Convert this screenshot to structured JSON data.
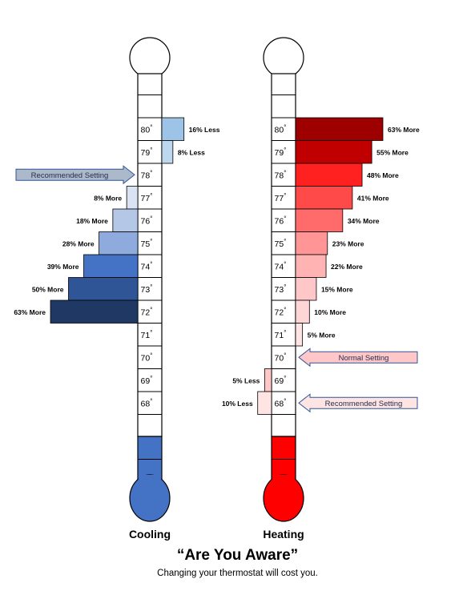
{
  "degree_symbol": "°",
  "cooling": {
    "label": "Cooling",
    "temps": [
      80,
      79,
      78,
      77,
      76,
      75,
      74,
      73,
      72,
      71,
      70,
      69,
      68
    ],
    "bars": [
      {
        "temp": 80,
        "percent": 16,
        "direction": "Less",
        "label": "16% Less",
        "color": "#9dc3e6"
      },
      {
        "temp": 79,
        "percent": 8,
        "direction": "Less",
        "label": "8% Less",
        "color": "#bdd7ee"
      },
      {
        "temp": 77,
        "percent": 8,
        "direction": "More",
        "label": "8% More",
        "color": "#dae3f3"
      },
      {
        "temp": 76,
        "percent": 18,
        "direction": "More",
        "label": "18% More",
        "color": "#b4c7e7"
      },
      {
        "temp": 75,
        "percent": 28,
        "direction": "More",
        "label": "28% More",
        "color": "#8faadc"
      },
      {
        "temp": 74,
        "percent": 39,
        "direction": "More",
        "label": "39% More",
        "color": "#4472c4"
      },
      {
        "temp": 73,
        "percent": 50,
        "direction": "More",
        "label": "50% More",
        "color": "#2f5597"
      },
      {
        "temp": 72,
        "percent": 63,
        "direction": "More",
        "label": "63% More",
        "color": "#203864"
      }
    ],
    "arrows": [
      {
        "temp": 78,
        "label": "Recommended Setting",
        "fill": "#acb9ca"
      }
    ],
    "bulb_color": "#4472c4"
  },
  "heating": {
    "label": "Heating",
    "temps": [
      80,
      79,
      78,
      77,
      76,
      75,
      74,
      73,
      72,
      71,
      70,
      69,
      68
    ],
    "bars": [
      {
        "temp": 80,
        "percent": 63,
        "direction": "More",
        "label": "63% More",
        "color": "#9e0000"
      },
      {
        "temp": 79,
        "percent": 55,
        "direction": "More",
        "label": "55% More",
        "color": "#c00000"
      },
      {
        "temp": 78,
        "percent": 48,
        "direction": "More",
        "label": "48% More",
        "color": "#ff2020"
      },
      {
        "temp": 77,
        "percent": 41,
        "direction": "More",
        "label": "41% More",
        "color": "#ff4a4a"
      },
      {
        "temp": 76,
        "percent": 34,
        "direction": "More",
        "label": "34% More",
        "color": "#ff6b6b"
      },
      {
        "temp": 75,
        "percent": 23,
        "direction": "More",
        "label": "23% More",
        "color": "#ff9595"
      },
      {
        "temp": 74,
        "percent": 22,
        "direction": "More",
        "label": "22% More",
        "color": "#ffb3b3"
      },
      {
        "temp": 73,
        "percent": 15,
        "direction": "More",
        "label": "15% More",
        "color": "#ffc7c7"
      },
      {
        "temp": 72,
        "percent": 10,
        "direction": "More",
        "label": "10% More",
        "color": "#ffd6d6"
      },
      {
        "temp": 71,
        "percent": 5,
        "direction": "More",
        "label": "5% More",
        "color": "#ffe4e4"
      },
      {
        "temp": 69,
        "percent": 5,
        "direction": "Less",
        "label": "5% Less",
        "color": "#ffc7c7"
      },
      {
        "temp": 68,
        "percent": 10,
        "direction": "Less",
        "label": "10% Less",
        "color": "#ffe4e4"
      }
    ],
    "arrows": [
      {
        "temp": 70,
        "label": "Normal Setting",
        "fill": "#ffc7c7"
      },
      {
        "temp": 68,
        "label": "Recommended Setting",
        "fill": "#ffe4e4"
      }
    ],
    "bulb_color": "#ff0000"
  },
  "title": "“Are You Aware”",
  "subtitle": "Changing your thermostat will cost you."
}
